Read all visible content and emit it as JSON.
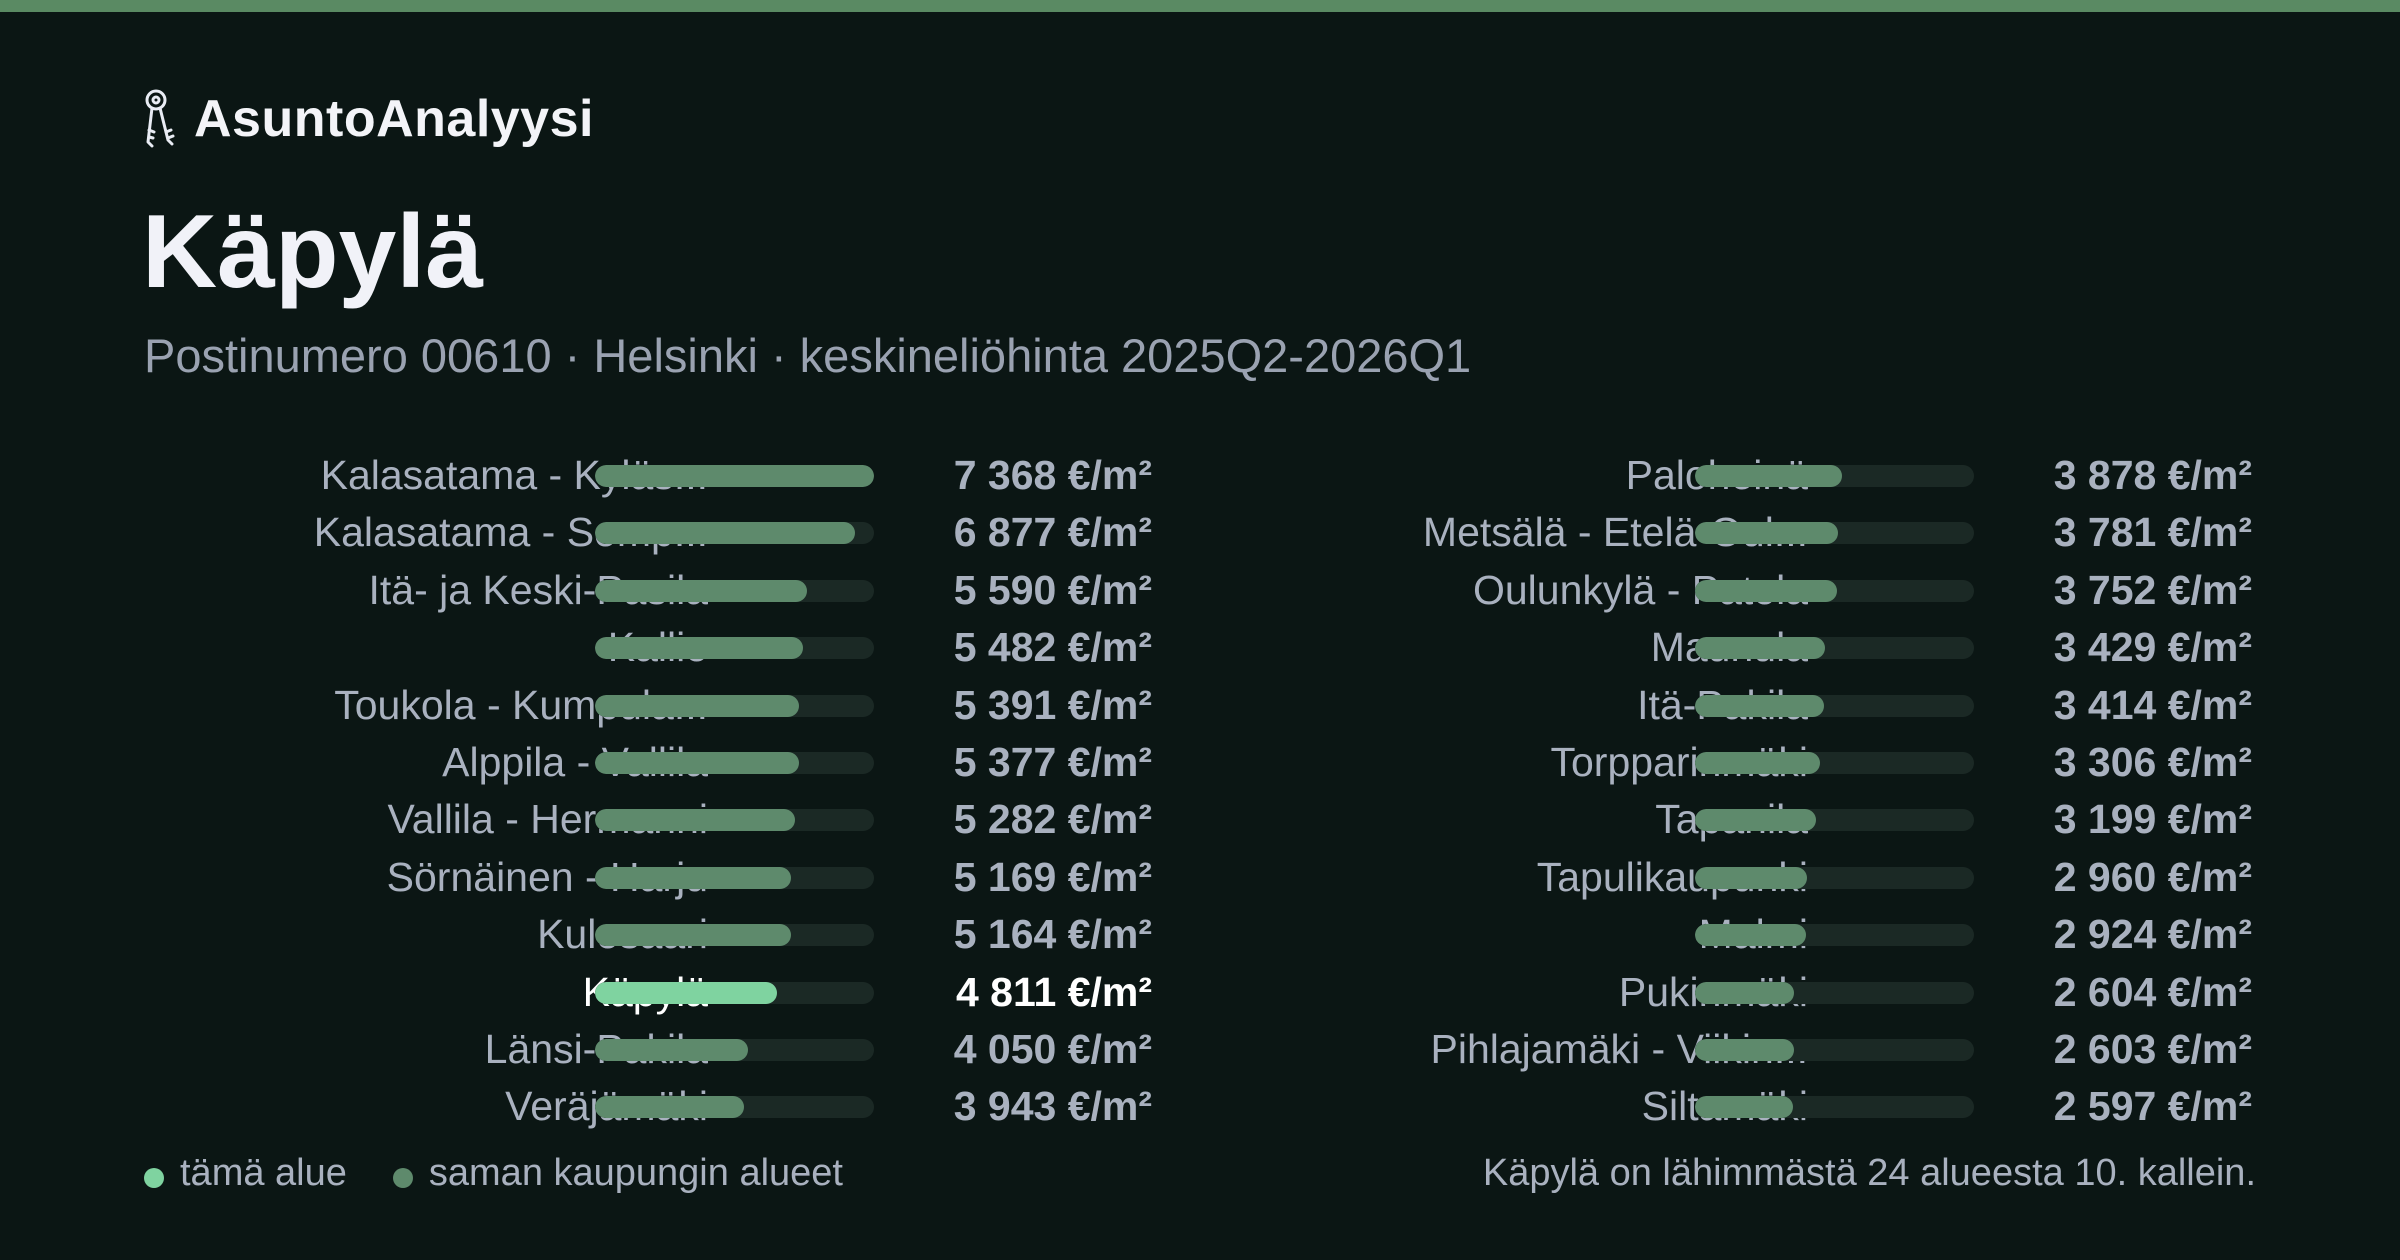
{
  "colors": {
    "accent_bar": "#5a8a63",
    "background": "#0b1614",
    "bar_other": "#5e8a6c",
    "bar_current": "#7fd3a0",
    "track": "#1b2925"
  },
  "brand": {
    "icon": "keys-icon",
    "name": "AsuntoAnalyysi"
  },
  "header": {
    "title": "Käpylä",
    "subtitle": "Postinumero 00610 · Helsinki · keskineliöhinta 2025Q2-2026Q1"
  },
  "ranking": {
    "max_value": 7368,
    "left": [
      {
        "name": "Kalasatama - Kyläs...",
        "value": 7368,
        "value_text": "7 368 €/m²",
        "current": false
      },
      {
        "name": "Kalasatama - Somp...",
        "value": 6877,
        "value_text": "6 877 €/m²",
        "current": false
      },
      {
        "name": "Itä- ja Keski-Pasila",
        "value": 5590,
        "value_text": "5 590 €/m²",
        "current": false
      },
      {
        "name": "Kallio",
        "value": 5482,
        "value_text": "5 482 €/m²",
        "current": false
      },
      {
        "name": "Toukola - Kumpula...",
        "value": 5391,
        "value_text": "5 391 €/m²",
        "current": false
      },
      {
        "name": "Alppila - Vallila",
        "value": 5377,
        "value_text": "5 377 €/m²",
        "current": false
      },
      {
        "name": "Vallila - Hermanni",
        "value": 5282,
        "value_text": "5 282 €/m²",
        "current": false
      },
      {
        "name": "Sörnäinen - Harju",
        "value": 5169,
        "value_text": "5 169 €/m²",
        "current": false
      },
      {
        "name": "Kulosaari",
        "value": 5164,
        "value_text": "5 164 €/m²",
        "current": false
      },
      {
        "name": "Käpylä",
        "value": 4811,
        "value_text": "4 811 €/m²",
        "current": true
      },
      {
        "name": "Länsi-Pakila",
        "value": 4050,
        "value_text": "4 050 €/m²",
        "current": false
      },
      {
        "name": "Veräjämäki",
        "value": 3943,
        "value_text": "3 943 €/m²",
        "current": false
      }
    ],
    "right": [
      {
        "name": "Paloheinä",
        "value": 3878,
        "value_text": "3 878 €/m²",
        "current": false
      },
      {
        "name": "Metsälä - Etelä-Oul...",
        "value": 3781,
        "value_text": "3 781 €/m²",
        "current": false
      },
      {
        "name": "Oulunkylä - Patola",
        "value": 3752,
        "value_text": "3 752 €/m²",
        "current": false
      },
      {
        "name": "Maunula",
        "value": 3429,
        "value_text": "3 429 €/m²",
        "current": false
      },
      {
        "name": "Itä-Pakila",
        "value": 3414,
        "value_text": "3 414 €/m²",
        "current": false
      },
      {
        "name": "Torpparinmäki",
        "value": 3306,
        "value_text": "3 306 €/m²",
        "current": false
      },
      {
        "name": "Tapanila",
        "value": 3199,
        "value_text": "3 199 €/m²",
        "current": false
      },
      {
        "name": "Tapulikaupunki",
        "value": 2960,
        "value_text": "2 960 €/m²",
        "current": false
      },
      {
        "name": "Malmi",
        "value": 2924,
        "value_text": "2 924 €/m²",
        "current": false
      },
      {
        "name": "Pukinmäki",
        "value": 2604,
        "value_text": "2 604 €/m²",
        "current": false
      },
      {
        "name": "Pihlajamäki - Viikin...",
        "value": 2603,
        "value_text": "2 603 €/m²",
        "current": false
      },
      {
        "name": "Siltamäki",
        "value": 2597,
        "value_text": "2 597 €/m²",
        "current": false
      }
    ]
  },
  "legend": {
    "current_label": "tämä alue",
    "others_label": "saman kaupungin alueet"
  },
  "rank_note": "Käpylä on lähimmästä 24 alueesta 10. kallein."
}
